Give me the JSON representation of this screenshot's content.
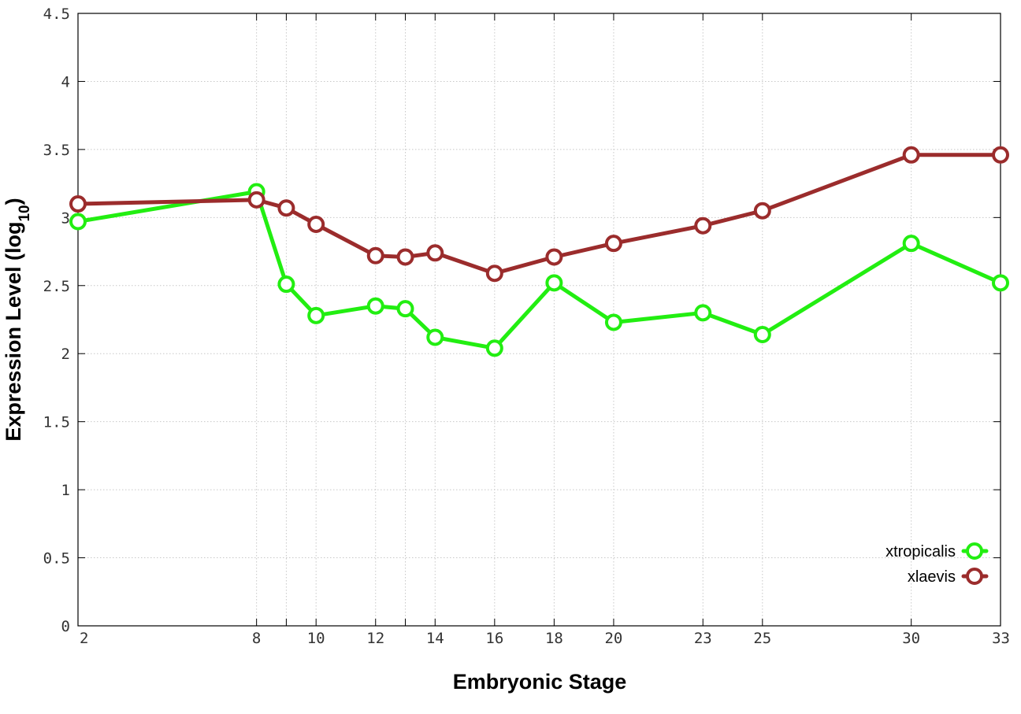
{
  "chart_data": {
    "type": "line",
    "xlabel": "Embryonic Stage",
    "ylabel": "Expression Level (log",
    "ylabel_sub": "10",
    "ylabel_end": ")",
    "xlim": [
      2,
      33
    ],
    "ylim": [
      0,
      4.5
    ],
    "x_ticks": [
      2,
      8,
      10,
      12,
      14,
      16,
      18,
      20,
      23,
      25,
      30,
      33
    ],
    "x_tick_positions": [
      2,
      8,
      9,
      10,
      12,
      13,
      14,
      16,
      18,
      20,
      23,
      25,
      30,
      33
    ],
    "y_ticks": [
      {
        "value": 0,
        "label": "0"
      },
      {
        "value": 0.5,
        "label": "0.5"
      },
      {
        "value": 1,
        "label": "1"
      },
      {
        "value": 1.5,
        "label": "1.5"
      },
      {
        "value": 2,
        "label": "2"
      },
      {
        "value": 2.5,
        "label": "2.5"
      },
      {
        "value": 3,
        "label": "3"
      },
      {
        "value": 3.5,
        "label": "3.5"
      },
      {
        "value": 4,
        "label": "4"
      },
      {
        "value": 4.5,
        "label": "4.5"
      }
    ],
    "grid": true,
    "legend_position": "bottom-right",
    "series": [
      {
        "name": "xtropicalis",
        "color": "#22ee11",
        "x": [
          2,
          8,
          9,
          10,
          12,
          13,
          14,
          16,
          18,
          20,
          23,
          25,
          30,
          33
        ],
        "y": [
          2.97,
          3.19,
          2.51,
          2.28,
          2.35,
          2.33,
          2.12,
          2.04,
          2.52,
          2.23,
          2.3,
          2.14,
          2.81,
          2.52
        ]
      },
      {
        "name": "xlaevis",
        "color": "#9b2c2c",
        "x": [
          2,
          8,
          9,
          10,
          12,
          13,
          14,
          16,
          18,
          20,
          23,
          25,
          30,
          33
        ],
        "y": [
          3.1,
          3.13,
          3.07,
          2.95,
          2.72,
          2.71,
          2.74,
          2.59,
          2.71,
          2.81,
          2.94,
          3.05,
          3.46,
          3.46
        ]
      }
    ]
  }
}
